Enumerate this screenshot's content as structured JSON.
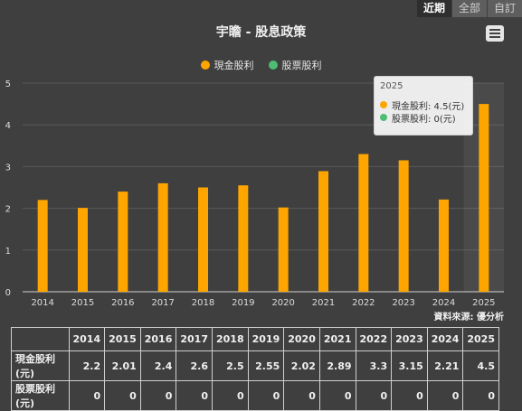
{
  "tabs": [
    {
      "label": "近期",
      "active": true
    },
    {
      "label": "全部",
      "active": false
    },
    {
      "label": "自訂",
      "active": false
    }
  ],
  "menu_icon": "hamburger-menu-icon",
  "source_note": "資料來源: 優分析",
  "tooltip": {
    "year": "2025",
    "rows": [
      {
        "text": "現金股利: 4.5(元)",
        "color": "#ffa500"
      },
      {
        "text": "股票股利: 0(元)",
        "color": "#4dbd74"
      }
    ]
  },
  "chart_data": {
    "type": "bar",
    "title": "宇瞻 - 股息政策",
    "categories": [
      "2014",
      "2015",
      "2016",
      "2017",
      "2018",
      "2019",
      "2020",
      "2021",
      "2022",
      "2023",
      "2024",
      "2025"
    ],
    "series": [
      {
        "name": "現金股利",
        "color": "#ffa500",
        "values": [
          2.2,
          2.01,
          2.4,
          2.6,
          2.5,
          2.55,
          2.02,
          2.89,
          3.3,
          3.15,
          2.21,
          4.5
        ]
      },
      {
        "name": "股票股利",
        "color": "#4dbd74",
        "values": [
          0,
          0,
          0,
          0,
          0,
          0,
          0,
          0,
          0,
          0,
          0,
          0
        ]
      }
    ],
    "ylim": [
      0,
      5
    ],
    "yticks": [
      0,
      1,
      2,
      3,
      4,
      5
    ],
    "grid": true,
    "legend": "top-center",
    "highlighted_category": "2025"
  },
  "table": {
    "header": [
      "",
      "2014",
      "2015",
      "2016",
      "2017",
      "2018",
      "2019",
      "2020",
      "2021",
      "2022",
      "2023",
      "2024",
      "2025"
    ],
    "rows": [
      {
        "label": "現金股利(元)",
        "values": [
          "2.2",
          "2.01",
          "2.4",
          "2.6",
          "2.5",
          "2.55",
          "2.02",
          "2.89",
          "3.3",
          "3.15",
          "2.21",
          "4.5"
        ]
      },
      {
        "label": "股票股利(元)",
        "values": [
          "0",
          "0",
          "0",
          "0",
          "0",
          "0",
          "0",
          "0",
          "0",
          "0",
          "0",
          "0"
        ]
      }
    ]
  }
}
